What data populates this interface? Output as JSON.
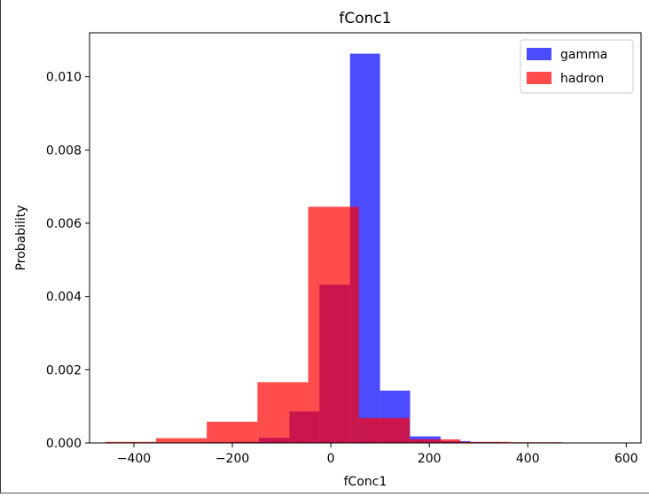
{
  "chart_data": {
    "type": "bar",
    "title": "fConc1",
    "xlabel": "fConc1",
    "ylabel": "Probability",
    "xlim": [
      -490,
      630
    ],
    "ylim": [
      0,
      0.0112
    ],
    "xticks": [
      -400,
      -200,
      0,
      200,
      400,
      600
    ],
    "xtick_labels": [
      "−400",
      "−200",
      "0",
      "200",
      "400",
      "600"
    ],
    "yticks": [
      0.0,
      0.002,
      0.004,
      0.006,
      0.008,
      0.01
    ],
    "ytick_labels": [
      "0.000",
      "0.002",
      "0.004",
      "0.006",
      "0.008",
      "0.010"
    ],
    "legend_position": "top-right",
    "grid": false,
    "series": [
      {
        "name": "gamma",
        "color": "#0000ff",
        "opacity": 0.7,
        "bin_edges": [
          -453,
          -391,
          -330,
          -268,
          -207,
          -146,
          -84,
          -23,
          39,
          100,
          161,
          223,
          284,
          346,
          407,
          469,
          530,
          592
        ],
        "values": [
          1e-05,
          1e-05,
          1e-05,
          2e-05,
          3e-05,
          0.00014,
          0.00086,
          0.00432,
          0.01063,
          0.00143,
          0.00018,
          5e-05,
          2e-05,
          1e-05,
          1e-05,
          5e-06,
          5e-06
        ]
      },
      {
        "name": "hadron",
        "color": "#ff0000",
        "opacity": 0.7,
        "bin_edges": [
          -458,
          -355,
          -252,
          -149,
          -46,
          57,
          160,
          263,
          366,
          469
        ],
        "values": [
          3e-05,
          0.00013,
          0.00058,
          0.00166,
          0.00645,
          0.00068,
          0.0001,
          3e-05,
          2e-05
        ]
      }
    ]
  }
}
